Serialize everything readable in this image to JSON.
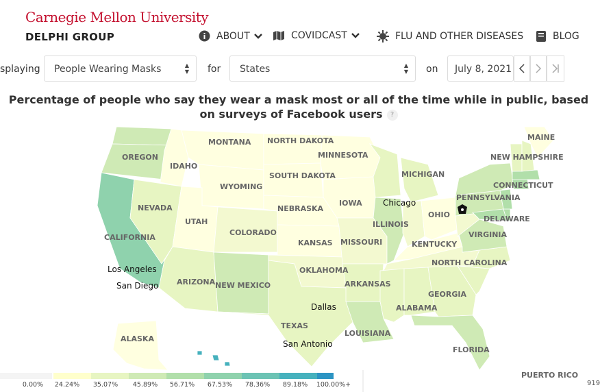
{
  "header": {
    "university": "Carnegie Mellon University",
    "group": "DELPHI GROUP",
    "nav": [
      {
        "label": "ABOUT",
        "icon": "info-circle-icon",
        "dropdown": true
      },
      {
        "label": "COVIDCAST",
        "icon": "map-icon",
        "dropdown": true
      },
      {
        "label": "FLU AND OTHER DISEASES",
        "icon": "virus-icon",
        "dropdown": false
      },
      {
        "label": "BLOG",
        "icon": "book-icon",
        "dropdown": false
      }
    ]
  },
  "controls": {
    "displaying_label": "splaying",
    "signal_value": "People Wearing Masks",
    "for_label": "for",
    "region_value": "States",
    "on_label": "on",
    "date_value": "July 8, 2021"
  },
  "map": {
    "title": "Percentage of people who say they wear a mask most or all of the time while in public, based on surveys of Facebook users",
    "help": "?",
    "states": [
      "MAINE",
      "NEW HAMPSHIRE",
      "CONNECTICUT",
      "PENNSYLVANIA",
      "DELAWARE",
      "VIRGINIA",
      "NORTH CAROLINA",
      "GEORGIA",
      "FLORIDA",
      "ALABAMA",
      "LOUISIANA",
      "ARKANSAS",
      "TEXAS",
      "OKLAHOMA",
      "KANSAS",
      "MISSOURI",
      "ILLINOIS",
      "KENTUCKY",
      "OHIO",
      "MICHIGAN",
      "IOWA",
      "MINNESOTA",
      "NORTH DAKOTA",
      "SOUTH DAKOTA",
      "NEBRASKA",
      "MONTANA",
      "WYOMING",
      "IDAHO",
      "OREGON",
      "NEVADA",
      "UTAH",
      "COLORADO",
      "CALIFORNIA",
      "ARIZONA",
      "NEW MEXICO",
      "ALASKA"
    ],
    "cities": [
      "Chicago",
      "Los Angeles",
      "San Diego",
      "Dallas",
      "San Antonio"
    ],
    "puerto_rico": "PUERTO RICO",
    "edge_text": "919"
  },
  "legend": {
    "labels": [
      "0.00%",
      "24.24%",
      "35.07%",
      "45.89%",
      "56.71%",
      "67.53%",
      "78.36%",
      "89.18%",
      "100.00%+"
    ],
    "colors": [
      "#f4f4f4",
      "#ffffcc",
      "#e7f5c2",
      "#cfeab5",
      "#b1dfaa",
      "#8fd2ad",
      "#6cc3b4",
      "#46b1bd",
      "#2c94c3"
    ]
  }
}
